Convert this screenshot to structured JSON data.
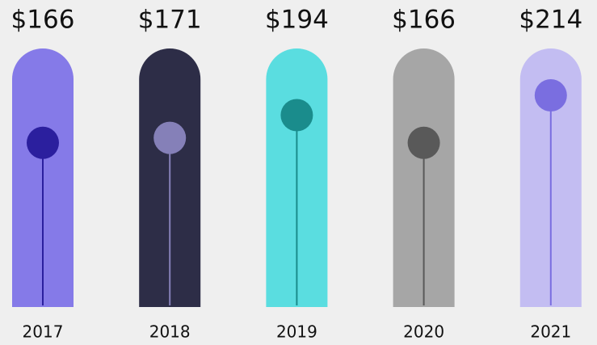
{
  "chart_data": {
    "type": "lollipop",
    "categories": [
      "2017",
      "2018",
      "2019",
      "2020",
      "2021"
    ],
    "values": [
      166,
      171,
      194,
      166,
      214
    ],
    "value_labels": [
      "$166",
      "$171",
      "$194",
      "$166",
      "$214"
    ],
    "column_colors": [
      "#857ae8",
      "#2d2d47",
      "#5adde0",
      "#a6a6a6",
      "#c3bdf2"
    ],
    "dot_colors": [
      "#2b1f9e",
      "#8580b8",
      "#1a8c8c",
      "#595959",
      "#7a6ee0"
    ]
  }
}
